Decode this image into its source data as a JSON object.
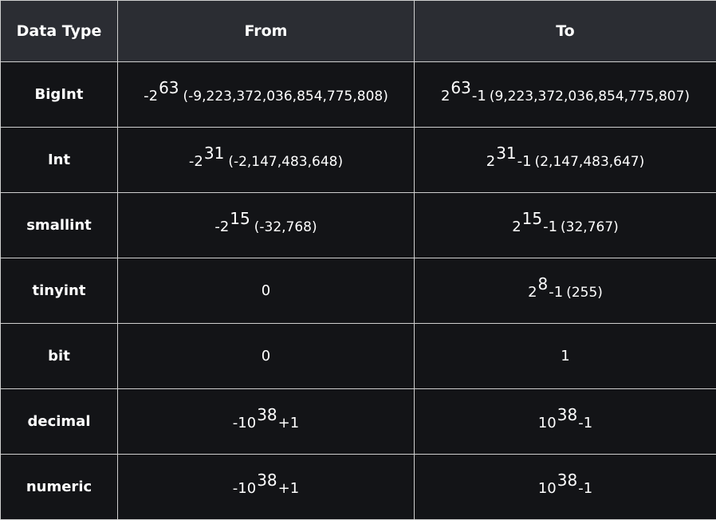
{
  "table": {
    "headers": {
      "type": "Data Type",
      "from": "From",
      "to": "To"
    },
    "rows": [
      {
        "name": "BigInt",
        "from": {
          "base": "-2",
          "exp": "63",
          "tail": "",
          "paren": "(-9,223,372,036,854,775,808)"
        },
        "to": {
          "base": "2",
          "exp": "63",
          "tail": "-1",
          "paren": "(9,223,372,036,854,775,807)"
        }
      },
      {
        "name": "Int",
        "from": {
          "base": "-2",
          "exp": "31",
          "tail": "",
          "paren": "(-2,147,483,648)"
        },
        "to": {
          "base": "2",
          "exp": "31",
          "tail": "-1",
          "paren": "(2,147,483,647)"
        }
      },
      {
        "name": "smallint",
        "from": {
          "base": "-2",
          "exp": "15",
          "tail": "",
          "paren": "(-32,768)"
        },
        "to": {
          "base": "2",
          "exp": "15",
          "tail": "-1",
          "paren": "(32,767)"
        }
      },
      {
        "name": "tinyint",
        "from": {
          "base": "0",
          "exp": "",
          "tail": "",
          "paren": ""
        },
        "to": {
          "base": "2",
          "exp": "8",
          "tail": "-1",
          "paren": "(255)"
        }
      },
      {
        "name": "bit",
        "from": {
          "base": "0",
          "exp": "",
          "tail": "",
          "paren": ""
        },
        "to": {
          "base": "1",
          "exp": "",
          "tail": "",
          "paren": ""
        }
      },
      {
        "name": "decimal",
        "from": {
          "base": "-10",
          "exp": "38",
          "tail": "+1",
          "paren": ""
        },
        "to": {
          "base": "10",
          "exp": "38",
          "tail": "-1",
          "paren": ""
        }
      },
      {
        "name": "numeric",
        "from": {
          "base": "-10",
          "exp": "38",
          "tail": "+1",
          "paren": ""
        },
        "to": {
          "base": "10",
          "exp": "38",
          "tail": "-1",
          "paren": ""
        }
      }
    ]
  }
}
